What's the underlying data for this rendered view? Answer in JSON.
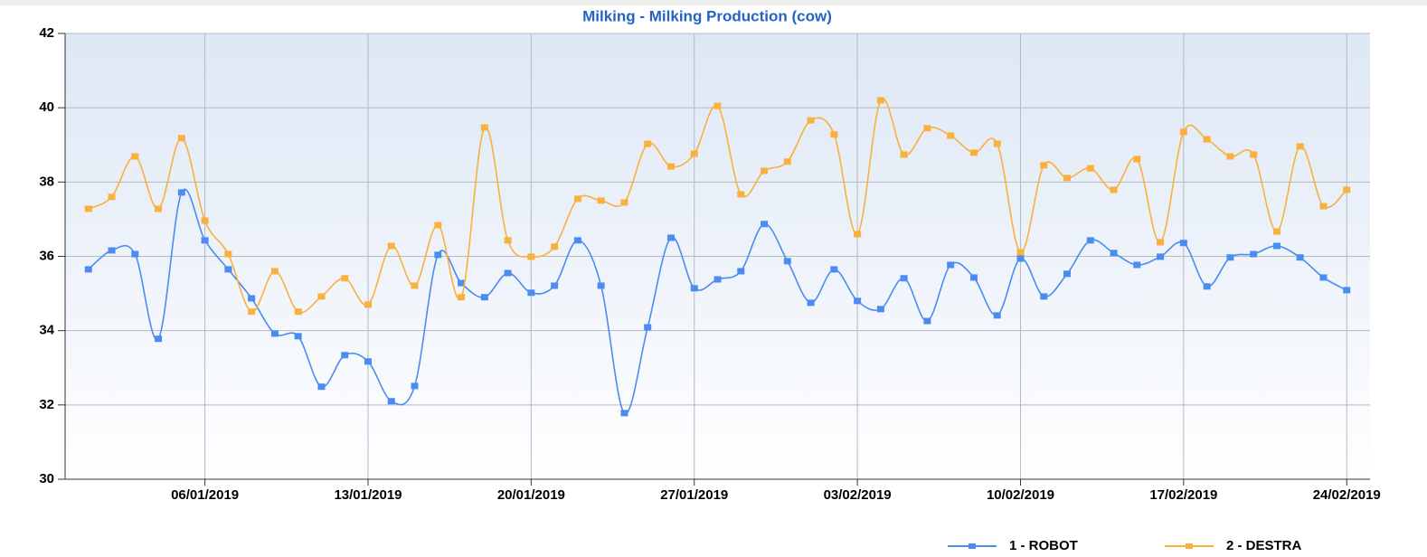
{
  "chart_data": {
    "type": "line",
    "title": "Milking - Milking Production (cow)",
    "x": [
      "01/01/2019",
      "02/01/2019",
      "03/01/2019",
      "04/01/2019",
      "05/01/2019",
      "06/01/2019",
      "07/01/2019",
      "08/01/2019",
      "09/01/2019",
      "10/01/2019",
      "11/01/2019",
      "12/01/2019",
      "13/01/2019",
      "14/01/2019",
      "15/01/2019",
      "16/01/2019",
      "17/01/2019",
      "18/01/2019",
      "19/01/2019",
      "20/01/2019",
      "21/01/2019",
      "22/01/2019",
      "23/01/2019",
      "24/01/2019",
      "25/01/2019",
      "26/01/2019",
      "27/01/2019",
      "28/01/2019",
      "29/01/2019",
      "30/01/2019",
      "31/01/2019",
      "01/02/2019",
      "02/02/2019",
      "03/02/2019",
      "04/02/2019",
      "05/02/2019",
      "06/02/2019",
      "07/02/2019",
      "08/02/2019",
      "09/02/2019",
      "10/02/2019",
      "11/02/2019",
      "12/02/2019",
      "13/02/2019",
      "14/02/2019",
      "15/02/2019",
      "16/02/2019",
      "17/02/2019",
      "18/02/2019",
      "19/02/2019",
      "20/02/2019",
      "21/02/2019",
      "22/02/2019",
      "23/02/2019",
      "24/02/2019"
    ],
    "series": [
      {
        "name": "1 - ROBOT",
        "color": "#4a8cf0",
        "values": [
          35.65,
          36.16,
          36.06,
          33.78,
          37.72,
          36.43,
          35.65,
          34.87,
          33.92,
          33.85,
          32.49,
          33.34,
          33.17,
          32.1,
          32.51,
          36.04,
          35.28,
          34.9,
          35.55,
          35.02,
          35.21,
          36.43,
          35.21,
          31.78,
          34.09,
          36.5,
          35.14,
          35.38,
          35.6,
          36.87,
          35.87,
          34.75,
          35.65,
          34.8,
          34.58,
          35.41,
          34.26,
          35.77,
          35.43,
          34.41,
          35.94,
          34.92,
          35.53,
          36.43,
          36.09,
          35.77,
          35.99,
          36.36,
          35.19,
          35.97,
          36.06,
          36.28,
          35.97,
          35.43,
          35.09
        ]
      },
      {
        "name": "2 - DESTRA",
        "color": "#f9b03d",
        "values": [
          37.28,
          37.6,
          38.69,
          37.28,
          39.18,
          36.96,
          36.06,
          34.51,
          35.6,
          34.51,
          34.92,
          35.41,
          34.7,
          36.28,
          35.21,
          36.84,
          34.9,
          39.47,
          36.43,
          35.99,
          36.26,
          37.55,
          37.5,
          37.45,
          39.03,
          38.42,
          38.76,
          40.05,
          37.67,
          38.3,
          38.55,
          39.66,
          39.28,
          36.6,
          40.2,
          38.74,
          39.45,
          39.25,
          38.79,
          39.03,
          36.11,
          38.45,
          38.11,
          38.37,
          37.79,
          38.62,
          36.38,
          39.35,
          39.15,
          38.69,
          38.74,
          36.67,
          38.96,
          37.35,
          37.79
        ]
      }
    ],
    "xlim": [
      "31/12/2018",
      "25/02/2019"
    ],
    "xticks": [
      "06/01/2019",
      "13/01/2019",
      "20/01/2019",
      "27/01/2019",
      "03/02/2019",
      "10/02/2019",
      "17/02/2019",
      "24/02/2019"
    ],
    "ylim": [
      30,
      42
    ],
    "yticks": [
      30,
      32,
      34,
      36,
      38,
      40,
      42
    ],
    "grid": true,
    "legend": "bottom-right"
  }
}
